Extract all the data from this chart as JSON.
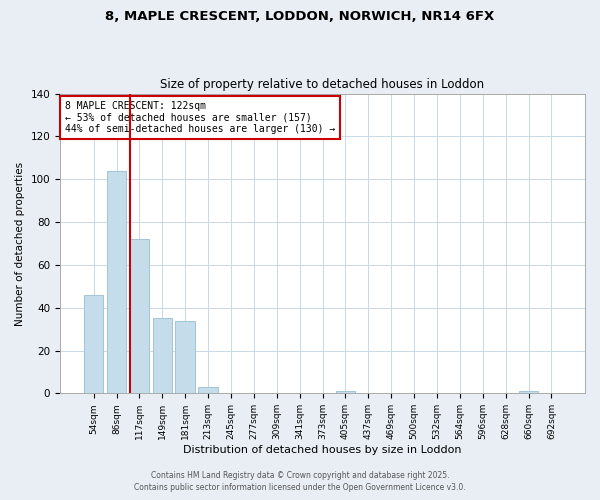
{
  "title": "8, MAPLE CRESCENT, LODDON, NORWICH, NR14 6FX",
  "subtitle": "Size of property relative to detached houses in Loddon",
  "xlabel": "Distribution of detached houses by size in Loddon",
  "ylabel": "Number of detached properties",
  "categories": [
    "54sqm",
    "86sqm",
    "117sqm",
    "149sqm",
    "181sqm",
    "213sqm",
    "245sqm",
    "277sqm",
    "309sqm",
    "341sqm",
    "373sqm",
    "405sqm",
    "437sqm",
    "469sqm",
    "500sqm",
    "532sqm",
    "564sqm",
    "596sqm",
    "628sqm",
    "660sqm",
    "692sqm"
  ],
  "values": [
    46,
    104,
    72,
    35,
    34,
    3,
    0,
    0,
    0,
    0,
    0,
    1,
    0,
    0,
    0,
    0,
    0,
    0,
    0,
    1,
    0
  ],
  "bar_color": "#c5dcea",
  "bar_edge_color": "#a0c4d8",
  "property_line_color": "#cc0000",
  "annotation_text": "8 MAPLE CRESCENT: 122sqm\n← 53% of detached houses are smaller (157)\n44% of semi-detached houses are larger (130) →",
  "annotation_box_color": "#ffffff",
  "annotation_box_edge_color": "#cc0000",
  "ylim": [
    0,
    140
  ],
  "yticks": [
    0,
    20,
    40,
    60,
    80,
    100,
    120,
    140
  ],
  "footer_line1": "Contains HM Land Registry data © Crown copyright and database right 2025.",
  "footer_line2": "Contains public sector information licensed under the Open Government Licence v3.0.",
  "bg_color": "#e8eef4",
  "plot_bg_color": "#ffffff",
  "grid_color": "#c8d8e8"
}
